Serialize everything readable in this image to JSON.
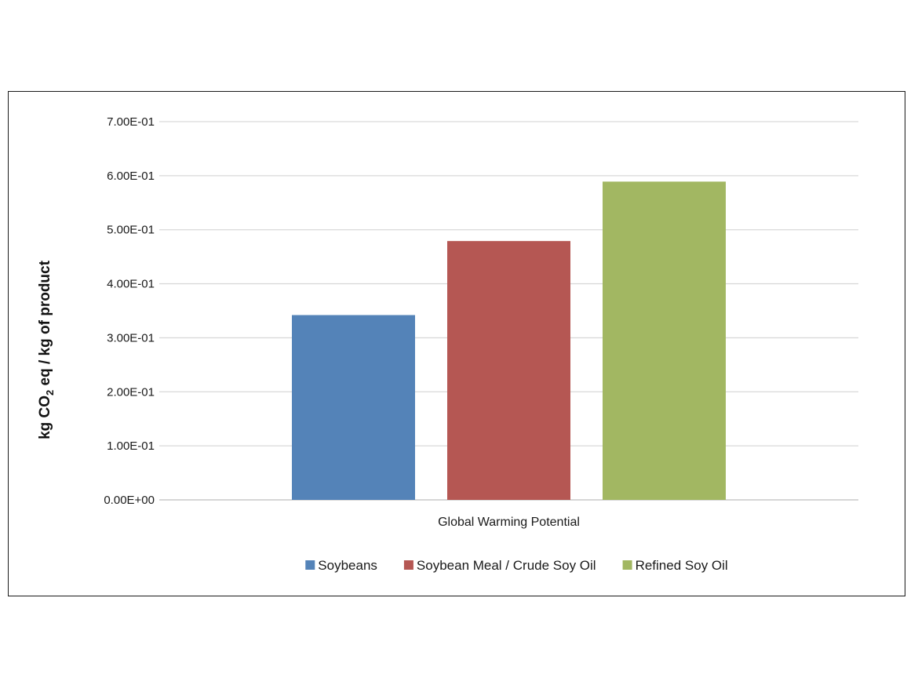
{
  "chart_data": {
    "type": "bar",
    "categories": [
      "Global Warming Potential"
    ],
    "series": [
      {
        "name": "Soybeans",
        "values": [
          0.342
        ],
        "color": "#5483b8"
      },
      {
        "name": "Soybean Meal / Crude Soy Oil",
        "values": [
          0.479
        ],
        "color": "#b55753"
      },
      {
        "name": "Refined Soy Oil",
        "values": [
          0.589
        ],
        "color": "#a2b762"
      }
    ],
    "ylim": [
      0,
      0.7
    ],
    "yticks": [
      0,
      0.1,
      0.2,
      0.3,
      0.4,
      0.5,
      0.6,
      0.7
    ],
    "ytick_labels": [
      "0.00E+00",
      "1.00E-01",
      "2.00E-01",
      "3.00E-01",
      "4.00E-01",
      "5.00E-01",
      "6.00E-01",
      "7.00E-01"
    ],
    "ylabel_parts": {
      "pre": "kg CO",
      "sub": "2",
      "post": " eq / kg of product"
    },
    "grid": true,
    "legend_position": "bottom"
  }
}
